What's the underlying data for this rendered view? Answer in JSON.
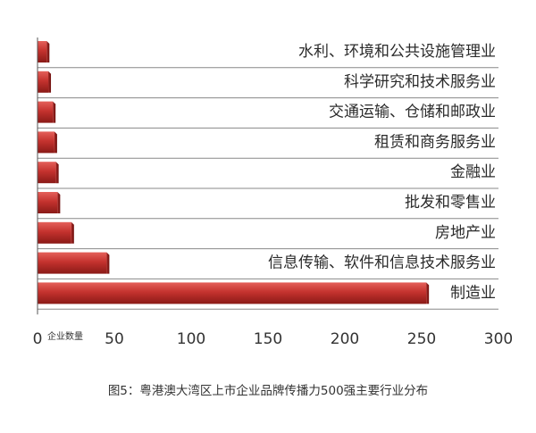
{
  "caption": "图5：粤港澳大湾区上市企业品牌传播力500强主要行业分布",
  "chart_data": {
    "type": "bar",
    "orientation": "horizontal",
    "title": "",
    "xlabel": "企业数量",
    "ylabel": "",
    "categories": [
      "水利、环境和公共设施管理业",
      "科学研究和技术服务业",
      "交通运输、仓储和邮政业",
      "租赁和商务服务业",
      "金融业",
      "批发和零售业",
      "房地产业",
      "信息传输、软件和信息技术服务业",
      "制造业"
    ],
    "values": [
      6,
      7,
      10,
      11,
      12,
      13,
      22,
      45,
      253
    ],
    "xlim": [
      0,
      300
    ],
    "xticks": [
      "0",
      "50",
      "100",
      "150",
      "200",
      "250",
      "300"
    ],
    "colors": {
      "bar": "#c0312e",
      "bar_dark": "#7e1613",
      "bar_light": "#e05a55",
      "axis": "#555555"
    },
    "grid": false,
    "legend": "none"
  }
}
